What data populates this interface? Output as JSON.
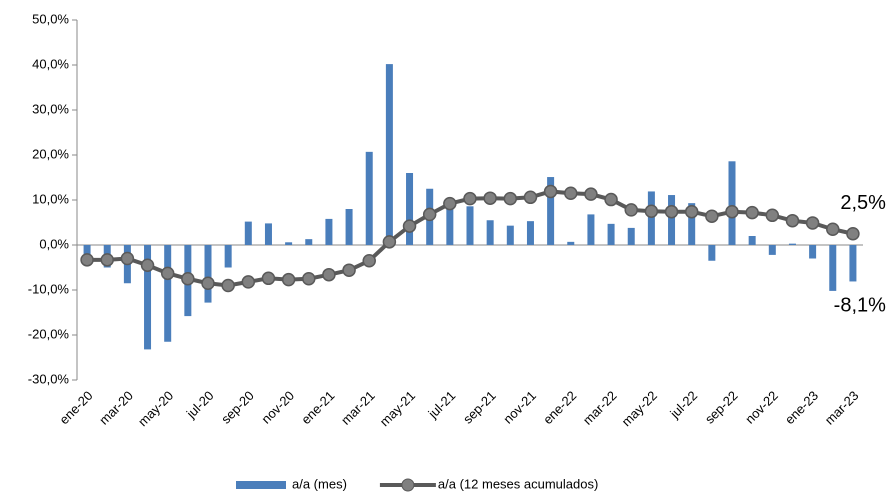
{
  "chart_data": {
    "type": "bar-line",
    "categories": [
      "ene-20",
      null,
      "mar-20",
      null,
      "may-20",
      null,
      "jul-20",
      null,
      "sep-20",
      null,
      "nov-20",
      null,
      "ene-21",
      null,
      "mar-21",
      null,
      "may-21",
      null,
      "jul-21",
      null,
      "sep-21",
      null,
      "nov-21",
      null,
      "ene-22",
      null,
      "mar-22",
      null,
      "may-22",
      null,
      "jul-22",
      null,
      "sep-22",
      null,
      "nov-22",
      null,
      "ene-23",
      null,
      "mar-23"
    ],
    "series": [
      {
        "name": "a/a (mes)",
        "type": "bar",
        "color": "#4a7ebb",
        "values": [
          -4.5,
          -5,
          -8.5,
          -23.2,
          -21.5,
          -15.8,
          -12.8,
          -5,
          5.2,
          4.8,
          0.6,
          1.3,
          5.8,
          8,
          20.7,
          40.2,
          16,
          12.5,
          9.5,
          8.6,
          5.5,
          4.3,
          5.3,
          15.1,
          0.7,
          6.8,
          4.7,
          3.8,
          11.9,
          11.1,
          9.3,
          -3.5,
          18.6,
          2,
          -2.2,
          0.3,
          -3,
          -10.2,
          -8.1
        ],
        "value_labels": [
          null,
          null,
          null,
          null,
          null,
          null,
          null,
          null,
          null,
          null,
          null,
          null,
          null,
          null,
          null,
          null,
          null,
          null,
          null,
          null,
          null,
          null,
          null,
          null,
          null,
          null,
          null,
          null,
          null,
          null,
          null,
          null,
          null,
          null,
          null,
          null,
          null,
          null,
          "-8,1%"
        ],
        "label_color": "#000000"
      },
      {
        "name": "a/a (12 meses acumulados)",
        "type": "line",
        "color": "#595959",
        "marker_color": "#808080",
        "values": [
          -3.3,
          -3.3,
          -3,
          -4.5,
          -6.3,
          -7.5,
          -8.5,
          -9,
          -8.2,
          -7.4,
          -7.7,
          -7.5,
          -6.6,
          -5.6,
          -3.5,
          0.7,
          4.2,
          6.8,
          9.2,
          10.3,
          10.4,
          10.3,
          10.6,
          11.9,
          11.5,
          11.3,
          10.1,
          7.8,
          7.5,
          7.4,
          7.4,
          6.4,
          7.4,
          7.2,
          6.6,
          5.4,
          4.9,
          3.5,
          2.5
        ],
        "value_labels": [
          null,
          null,
          null,
          null,
          null,
          null,
          null,
          null,
          null,
          null,
          null,
          null,
          null,
          null,
          null,
          null,
          null,
          null,
          null,
          null,
          null,
          null,
          null,
          null,
          null,
          null,
          null,
          null,
          null,
          null,
          null,
          null,
          null,
          null,
          null,
          null,
          null,
          null,
          "2,5%"
        ],
        "label_color": "#ff0000"
      }
    ],
    "ylim": [
      -30,
      50
    ],
    "yticks": [
      {
        "value": -30,
        "label": "-30,0%"
      },
      {
        "value": -20,
        "label": "-20,0%"
      },
      {
        "value": -10,
        "label": "-10,0%"
      },
      {
        "value": 0,
        "label": "0,0%"
      },
      {
        "value": 10,
        "label": "10,0%"
      },
      {
        "value": 20,
        "label": "20,0%"
      },
      {
        "value": 30,
        "label": "30,0%"
      },
      {
        "value": 40,
        "label": "40,0%"
      },
      {
        "value": 50,
        "label": "50,0%"
      }
    ],
    "grid": false,
    "legend": "bottom"
  }
}
